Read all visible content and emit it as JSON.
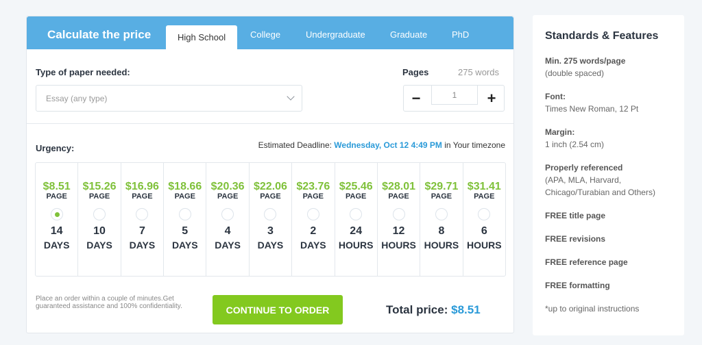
{
  "calculator": {
    "title": "Calculate the price",
    "tabs": [
      "High School",
      "College",
      "Undergraduate",
      "Graduate",
      "PhD"
    ],
    "active_tab": "High School",
    "paper_label": "Type of paper needed:",
    "paper_value": "Essay (any type)",
    "pages_label": "Pages",
    "words": "275 words",
    "pages_value": "1",
    "minus": "−",
    "plus": "+",
    "urgency_label": "Urgency:",
    "deadline_prefix": "Estimated Deadline:",
    "deadline_value": "Wednesday, Oct 12 4:49 PM",
    "deadline_suffix": "in Your timezone",
    "options": [
      {
        "price": "$8.51",
        "per": "PAGE",
        "num": "14",
        "unit": "DAYS",
        "selected": true
      },
      {
        "price": "$15.26",
        "per": "PAGE",
        "num": "10",
        "unit": "DAYS"
      },
      {
        "price": "$16.96",
        "per": "PAGE",
        "num": "7",
        "unit": "DAYS"
      },
      {
        "price": "$18.66",
        "per": "PAGE",
        "num": "5",
        "unit": "DAYS"
      },
      {
        "price": "$20.36",
        "per": "PAGE",
        "num": "4",
        "unit": "DAYS"
      },
      {
        "price": "$22.06",
        "per": "PAGE",
        "num": "3",
        "unit": "DAYS"
      },
      {
        "price": "$23.76",
        "per": "PAGE",
        "num": "2",
        "unit": "DAYS"
      },
      {
        "price": "$25.46",
        "per": "PAGE",
        "num": "24",
        "unit": "HOURS"
      },
      {
        "price": "$28.01",
        "per": "PAGE",
        "num": "12",
        "unit": "HOURS"
      },
      {
        "price": "$29.71",
        "per": "PAGE",
        "num": "8",
        "unit": "HOURS"
      },
      {
        "price": "$31.41",
        "per": "PAGE",
        "num": "6",
        "unit": "HOURS"
      }
    ],
    "note": "Place an order within a couple of minutes.Get guaranteed assistance and 100% confidentiality.",
    "cta": "CONTINUE TO ORDER",
    "total_label": "Total price:",
    "total_value": "$8.51"
  },
  "sidebar": {
    "title": "Standards & Features",
    "features": [
      {
        "title": "Min. 275 words/page",
        "desc": "(double spaced)"
      },
      {
        "title": "Font:",
        "desc": "Times New Roman, 12 Pt"
      },
      {
        "title": "Margin:",
        "desc": "1 inch (2.54 cm)"
      },
      {
        "title": "Properly referenced",
        "desc": "(APA, MLA, Harvard, Chicago/Turabian and Others)"
      },
      {
        "title": "FREE title page"
      },
      {
        "title": "FREE revisions"
      },
      {
        "title": "FREE reference page"
      },
      {
        "title": "FREE formatting"
      },
      {
        "desc": "*up to original instructions"
      }
    ]
  },
  "colors": {
    "header": "#58aee3",
    "price": "#7fc13a",
    "cta": "#83c91f",
    "accent": "#2a9ad8"
  }
}
